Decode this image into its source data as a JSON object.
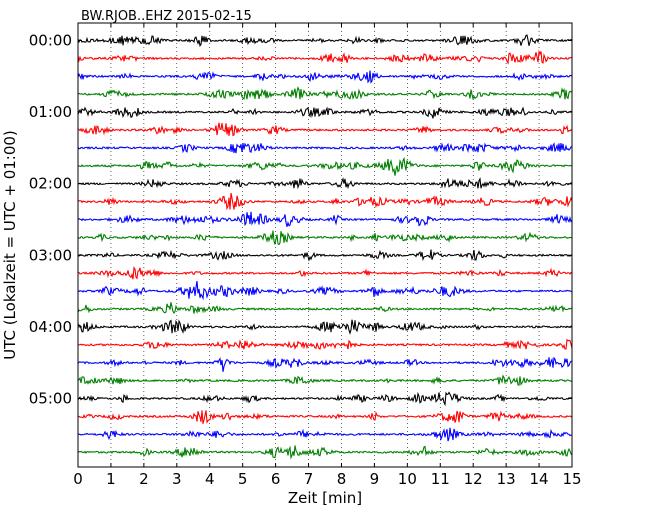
{
  "chart_data": {
    "type": "line",
    "title": "BW.RJOB..EHZ 2015-02-15",
    "xlabel": "Zeit  [min]",
    "ylabel": "UTC (Lokalzeit = UTC + 01:00)",
    "xlim": [
      0,
      15
    ],
    "x_ticks": [
      "0",
      "1",
      "2",
      "3",
      "4",
      "5",
      "6",
      "7",
      "8",
      "9",
      "10",
      "11",
      "12",
      "13",
      "14",
      "15"
    ],
    "y_ticks": [
      "00:00",
      "01:00",
      "02:00",
      "03:00",
      "04:00",
      "05:00"
    ],
    "traces_per_hour": 4,
    "trace_count": 24,
    "colors": [
      "#000000",
      "#ff0000",
      "#0000ff",
      "#007f00"
    ],
    "grid": "vertical dotted lines at each minute"
  }
}
